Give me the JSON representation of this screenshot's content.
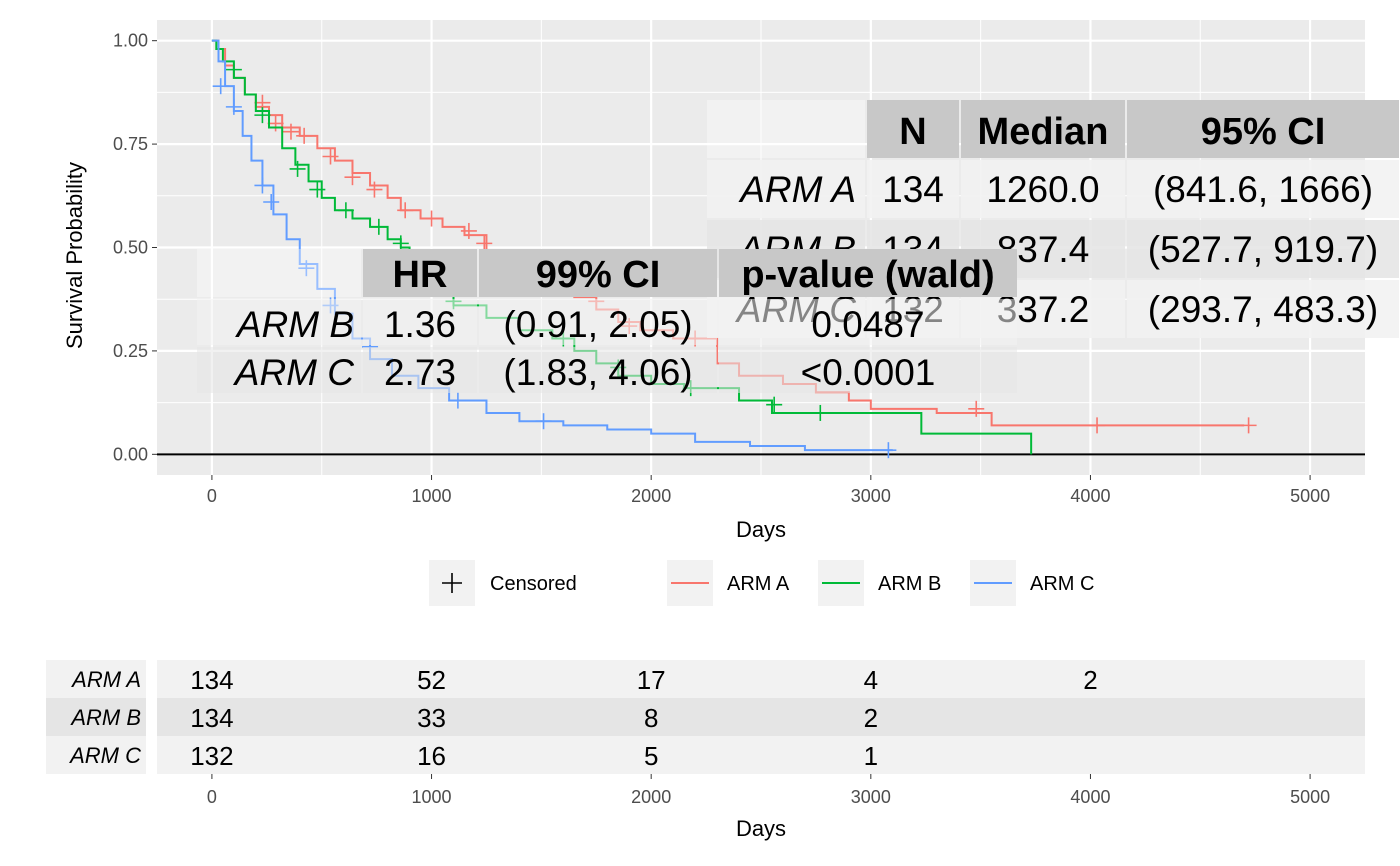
{
  "chart_data": {
    "type": "line",
    "subtype": "kaplan-meier",
    "xlabel": "Days",
    "ylabel": "Survival Probability",
    "xlim": [
      -250,
      5250
    ],
    "ylim": [
      -0.05,
      1.05
    ],
    "x_ticks": [
      0,
      1000,
      2000,
      3000,
      4000,
      5000
    ],
    "x_tick_labels": [
      "0",
      "1000",
      "2000",
      "3000",
      "4000",
      "5000"
    ],
    "y_ticks": [
      0,
      0.25,
      0.5,
      0.75,
      1.0
    ],
    "y_tick_labels": [
      "0.00",
      "0.25",
      "0.50",
      "0.75",
      "1.00"
    ],
    "grid": true,
    "legend": {
      "position": "bottom",
      "censored_label": "Censored",
      "entries": [
        "ARM A",
        "ARM B",
        "ARM C"
      ]
    },
    "series": [
      {
        "name": "ARM A",
        "color": "#F8766D",
        "x": [
          0,
          30,
          60,
          100,
          150,
          200,
          260,
          320,
          400,
          480,
          560,
          640,
          720,
          800,
          860,
          950,
          1050,
          1150,
          1250,
          1350,
          1450,
          1550,
          1650,
          1750,
          1850,
          1950,
          2100,
          2300,
          2400,
          2600,
          2750,
          2900,
          3000,
          3300,
          3550,
          4000,
          4700
        ],
        "y": [
          1.0,
          0.98,
          0.94,
          0.91,
          0.87,
          0.84,
          0.82,
          0.79,
          0.77,
          0.74,
          0.71,
          0.68,
          0.65,
          0.62,
          0.59,
          0.57,
          0.55,
          0.53,
          0.49,
          0.46,
          0.43,
          0.41,
          0.38,
          0.35,
          0.32,
          0.3,
          0.28,
          0.22,
          0.19,
          0.17,
          0.15,
          0.13,
          0.11,
          0.1,
          0.07,
          0.07,
          0.07
        ],
        "censored": [
          [
            230,
            0.85
          ],
          [
            290,
            0.8
          ],
          [
            360,
            0.78
          ],
          [
            420,
            0.77
          ],
          [
            540,
            0.72
          ],
          [
            640,
            0.67
          ],
          [
            740,
            0.64
          ],
          [
            880,
            0.59
          ],
          [
            1000,
            0.57
          ],
          [
            1170,
            0.54
          ],
          [
            1240,
            0.51
          ],
          [
            1600,
            0.41
          ],
          [
            1750,
            0.37
          ],
          [
            1900,
            0.31
          ],
          [
            2200,
            0.28
          ],
          [
            3480,
            0.11
          ],
          [
            4030,
            0.07
          ],
          [
            4720,
            0.07
          ]
        ]
      },
      {
        "name": "ARM B",
        "color": "#00BA38",
        "x": [
          0,
          20,
          50,
          100,
          150,
          200,
          260,
          320,
          380,
          440,
          500,
          560,
          640,
          720,
          800,
          860,
          900,
          1000,
          1100,
          1250,
          1400,
          1550,
          1650,
          1750,
          1850,
          2000,
          2150,
          2400,
          2550,
          3000,
          3230,
          3730
        ],
        "y": [
          1.0,
          0.98,
          0.95,
          0.91,
          0.87,
          0.83,
          0.79,
          0.74,
          0.7,
          0.66,
          0.62,
          0.59,
          0.57,
          0.55,
          0.52,
          0.5,
          0.45,
          0.4,
          0.36,
          0.33,
          0.3,
          0.28,
          0.25,
          0.22,
          0.19,
          0.17,
          0.16,
          0.13,
          0.1,
          0.1,
          0.05,
          0.0
        ],
        "censored": [
          [
            100,
            0.93
          ],
          [
            230,
            0.82
          ],
          [
            390,
            0.69
          ],
          [
            480,
            0.64
          ],
          [
            610,
            0.59
          ],
          [
            760,
            0.55
          ],
          [
            860,
            0.51
          ],
          [
            1100,
            0.37
          ],
          [
            1600,
            0.28
          ],
          [
            1850,
            0.21
          ],
          [
            2180,
            0.16
          ],
          [
            2560,
            0.12
          ],
          [
            2770,
            0.1
          ]
        ]
      },
      {
        "name": "ARM C",
        "color": "#619CFF",
        "x": [
          0,
          30,
          60,
          100,
          140,
          180,
          230,
          280,
          340,
          400,
          480,
          560,
          640,
          720,
          820,
          940,
          1080,
          1250,
          1400,
          1600,
          1800,
          2000,
          2200,
          2450,
          2700,
          3100
        ],
        "y": [
          1.0,
          0.95,
          0.89,
          0.83,
          0.77,
          0.71,
          0.65,
          0.58,
          0.52,
          0.46,
          0.4,
          0.34,
          0.28,
          0.23,
          0.19,
          0.16,
          0.13,
          0.1,
          0.08,
          0.07,
          0.06,
          0.05,
          0.03,
          0.02,
          0.01,
          0.01
        ],
        "censored": [
          [
            40,
            0.89
          ],
          [
            100,
            0.84
          ],
          [
            230,
            0.65
          ],
          [
            270,
            0.61
          ],
          [
            430,
            0.45
          ],
          [
            540,
            0.36
          ],
          [
            720,
            0.26
          ],
          [
            1120,
            0.13
          ],
          [
            1510,
            0.08
          ],
          [
            3080,
            0.01
          ]
        ]
      }
    ],
    "summary_table": {
      "headers": [
        "N",
        "Median",
        "95% CI"
      ],
      "rows": [
        {
          "arm": "ARM A",
          "n": "134",
          "median": "1260.0",
          "ci": "(841.6, 1666)"
        },
        {
          "arm": "ARM B",
          "n": "134",
          "median": "837.4",
          "ci": "(527.7, 919.7)"
        },
        {
          "arm": "ARM C",
          "n": "132",
          "median": "337.2",
          "ci": "(293.7, 483.3)"
        }
      ]
    },
    "hr_table": {
      "headers": [
        "HR",
        "99% CI",
        "p-value (wald)"
      ],
      "rows": [
        {
          "arm": "ARM B",
          "hr": "1.36",
          "ci": "(0.91, 2.05)",
          "p": "0.0487"
        },
        {
          "arm": "ARM C",
          "hr": "2.73",
          "ci": "(1.83, 4.06)",
          "p": "<0.0001"
        }
      ]
    },
    "risk_table": {
      "xlabel": "Days",
      "time_points": [
        0,
        1000,
        2000,
        3000,
        4000
      ],
      "rows": [
        {
          "arm": "ARM A",
          "counts": [
            "134",
            "52",
            "17",
            "4",
            "2"
          ]
        },
        {
          "arm": "ARM B",
          "counts": [
            "134",
            "33",
            "8",
            "2",
            ""
          ]
        },
        {
          "arm": "ARM C",
          "counts": [
            "132",
            "16",
            "5",
            "1",
            ""
          ]
        }
      ]
    }
  }
}
